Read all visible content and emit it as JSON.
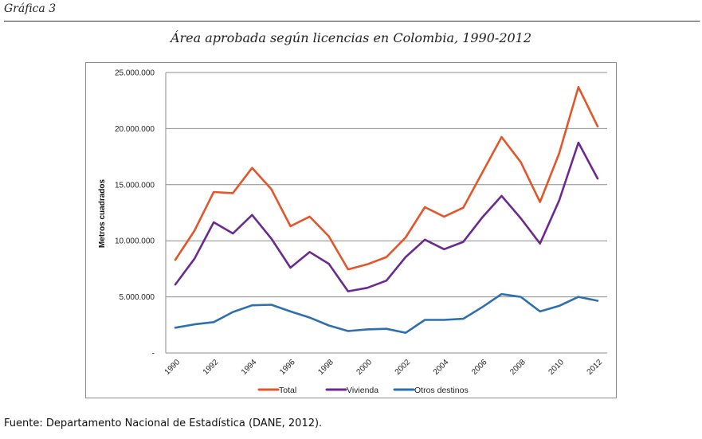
{
  "figure_label": "Gráfica 3",
  "source": "Fuente: Departamento Nacional de Estadística (DANE, 2012).",
  "chart_data": {
    "type": "line",
    "title": "Área aprobada según licencias en Colombia, 1990-2012",
    "xlabel": "",
    "ylabel": "Metros cuadrados",
    "ylim": [
      0,
      25000000
    ],
    "yticks": [
      0,
      5000000,
      10000000,
      15000000,
      20000000,
      25000000
    ],
    "ytick_labels": [
      "-",
      "5.000.000",
      "10.000.000",
      "15.000.000",
      "20.000.000",
      "25.000.000"
    ],
    "grid": "horizontal",
    "legend_position": "bottom",
    "x": [
      1990,
      1991,
      1992,
      1993,
      1994,
      1995,
      1996,
      1997,
      1998,
      1999,
      2000,
      2001,
      2002,
      2003,
      2004,
      2005,
      2006,
      2007,
      2008,
      2009,
      2010,
      2011,
      2012
    ],
    "xtick_labels": [
      "1990",
      "1992",
      "1994",
      "1996",
      "1998",
      "2000",
      "2002",
      "2004",
      "2006",
      "2008",
      "2010",
      "2012"
    ],
    "series": [
      {
        "name": "Total",
        "color": "#E2562A",
        "values": [
          8300000,
          10900000,
          14350000,
          14250000,
          16500000,
          14600000,
          11300000,
          12150000,
          10400000,
          7450000,
          7900000,
          8550000,
          10300000,
          13000000,
          12150000,
          12950000,
          16100000,
          19250000,
          17000000,
          13450000,
          17800000,
          23700000,
          20200000
        ]
      },
      {
        "name": "Vivienda",
        "color": "#6A2A8F",
        "values": [
          6100000,
          8400000,
          11650000,
          10650000,
          12300000,
          10200000,
          7600000,
          9000000,
          7950000,
          5500000,
          5800000,
          6450000,
          8550000,
          10100000,
          9250000,
          9900000,
          12100000,
          14000000,
          12000000,
          9750000,
          13600000,
          18750000,
          15550000
        ]
      },
      {
        "name": "Otros destinos",
        "color": "#2E6FAE",
        "values": [
          2250000,
          2550000,
          2750000,
          3650000,
          4250000,
          4300000,
          3700000,
          3150000,
          2450000,
          1950000,
          2100000,
          2150000,
          1800000,
          2950000,
          2950000,
          3050000,
          4100000,
          5250000,
          5000000,
          3700000,
          4200000,
          5000000,
          4650000
        ]
      }
    ]
  }
}
